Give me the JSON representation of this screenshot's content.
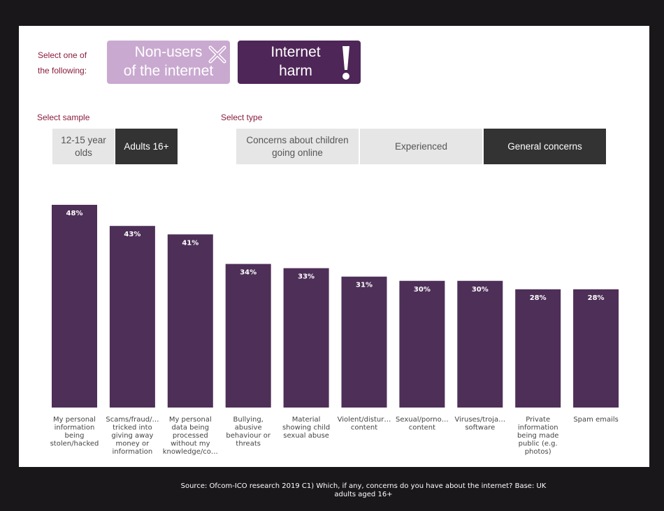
{
  "selector": {
    "prompt": "Select one of the following:",
    "options": [
      {
        "label_line1": "Non-users",
        "label_line2": "of the internet",
        "icon": "x-icon",
        "color": "#c9a9d0"
      },
      {
        "label_line1": "Internet",
        "label_line2": "harm",
        "icon": "exclamation-icon",
        "color": "#4e2657"
      }
    ]
  },
  "sample": {
    "label": "Select sample",
    "options": [
      "12-15 year olds",
      "Adults 16+"
    ],
    "selected": "Adults 16+"
  },
  "type": {
    "label": "Select type",
    "options": [
      "Concerns about children going online",
      "Experienced",
      "General concerns"
    ],
    "selected": "General concerns"
  },
  "chart_data": {
    "type": "bar",
    "categories": [
      "My personal information being stolen/hacked",
      "Scams/fraud/… tricked into giving away money or information",
      "My personal data being processed without my knowledge/co…",
      "Bullying, abusive behaviour or threats",
      "Material showing child sexual abuse",
      "Violent/distur… content",
      "Sexual/porno… content",
      "Viruses/troja… software",
      "Private information being made public (e.g. photos)",
      "Spam emails"
    ],
    "category_lines": [
      [
        "My personal",
        "information",
        "being",
        "stolen/hacked"
      ],
      [
        "Scams/fraud/…",
        "tricked into",
        "giving away",
        "money or",
        "information"
      ],
      [
        "My personal",
        "data being",
        "processed",
        "without my",
        "knowledge/co…"
      ],
      [
        "Bullying,",
        "abusive",
        "behaviour or",
        "threats"
      ],
      [
        "Material",
        "showing child",
        "sexual abuse"
      ],
      [
        "Violent/distur…",
        "content"
      ],
      [
        "Sexual/porno…",
        "content"
      ],
      [
        "Viruses/troja…",
        "software"
      ],
      [
        "Private",
        "information",
        "being made",
        "public (e.g.",
        "photos)"
      ],
      [
        "Spam emails"
      ]
    ],
    "values": [
      48,
      43,
      41,
      34,
      33,
      31,
      30,
      30,
      28,
      28
    ],
    "value_labels": [
      "48%",
      "43%",
      "41%",
      "34%",
      "33%",
      "31%",
      "30%",
      "30%",
      "28%",
      "28%"
    ],
    "ylim": [
      0,
      48
    ],
    "bar_color": "#4e2f58",
    "title": "",
    "xlabel": "",
    "ylabel": "",
    "grid": false
  },
  "source": "Source: Ofcom-ICO research 2019 C1) Which, if any, concerns do you have about the internet?  Base: UK adults aged 16+"
}
